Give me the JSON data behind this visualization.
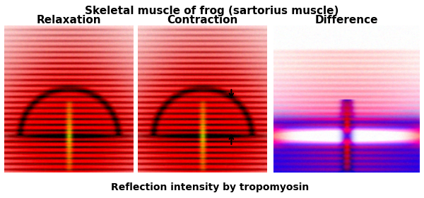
{
  "title": "Skeletal muscle of frog (sartorius muscle)",
  "panel_labels": [
    "Relaxation",
    "Contraction",
    "Difference"
  ],
  "annotation_text": "Reflection intensity by tropomyosin",
  "title_fontsize": 11,
  "label_fontsize": 11,
  "annot_fontsize": 10,
  "fig_width": 6.0,
  "fig_height": 2.8,
  "dpi": 100
}
